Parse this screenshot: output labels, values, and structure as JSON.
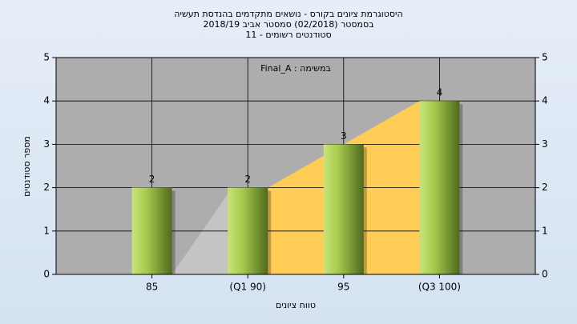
{
  "chart_data": {
    "type": "bar",
    "title": [
      "היסטוגרמת ציונים בקורס - נושאים מתקדמים בהנדסת תעשיה",
      "בסמסטר  (02/2018)  סמסטר אביב 2018/19",
      "סטודנטים רשומים - 11"
    ],
    "annotation": "במשימה : Final_A",
    "x_label": "טווח ציונים",
    "y_label": "מספר סטודנטים",
    "categories": [
      "85",
      "(Q1 90)",
      "95",
      "(Q3 100)"
    ],
    "values": [
      2,
      2,
      3,
      4
    ],
    "color": "#9bc53d",
    "ylim": [
      0,
      5
    ],
    "yticks": [
      0,
      1,
      2,
      3,
      4,
      5
    ],
    "y2lim": [
      0,
      5
    ],
    "y2ticks": [
      0,
      1,
      2,
      3,
      4,
      5
    ],
    "grid": true
  }
}
